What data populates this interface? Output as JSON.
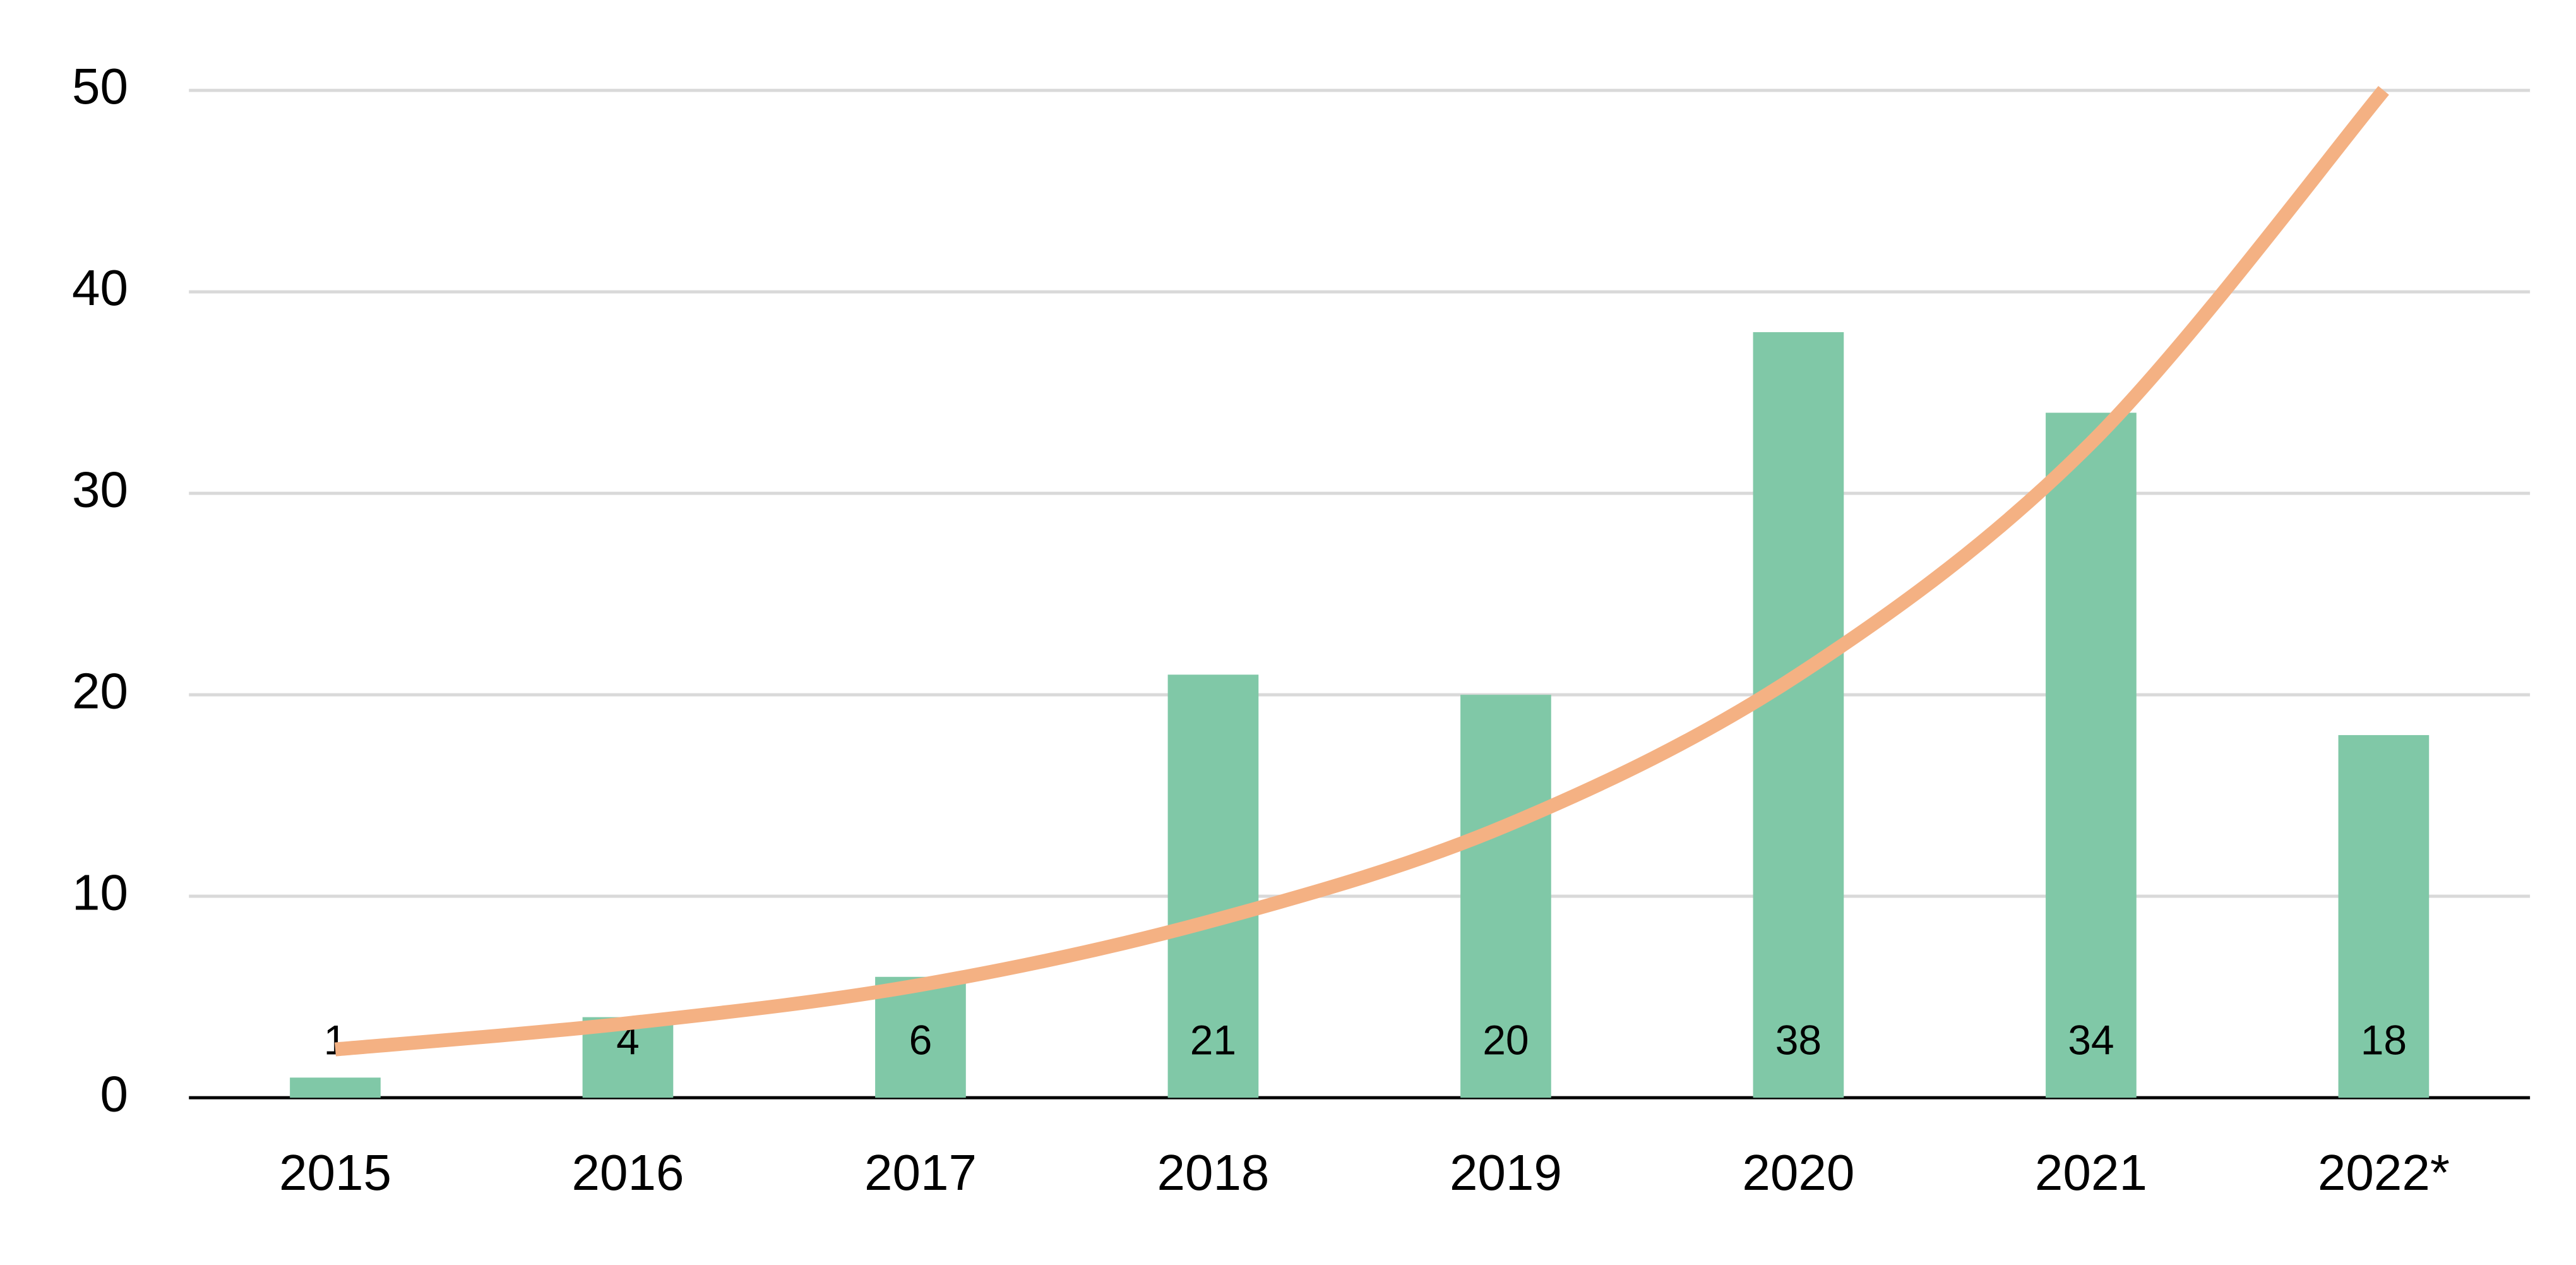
{
  "chart_data": {
    "type": "bar",
    "categories": [
      "2015",
      "2016",
      "2017",
      "2018",
      "2019",
      "2020",
      "2021",
      "2022*"
    ],
    "series": [
      {
        "type": "bar",
        "color": "#80c8a7",
        "values": [
          1,
          4,
          6,
          21,
          20,
          38,
          34,
          18
        ]
      },
      {
        "type": "line",
        "color": "#f4b183",
        "values": [
          2.4,
          3.7,
          5.6,
          8.8,
          13.5,
          21,
          32.5,
          50
        ]
      }
    ],
    "ylim": [
      0,
      50
    ],
    "yticks": [
      0,
      10,
      20,
      30,
      40,
      50
    ],
    "grid": true
  }
}
